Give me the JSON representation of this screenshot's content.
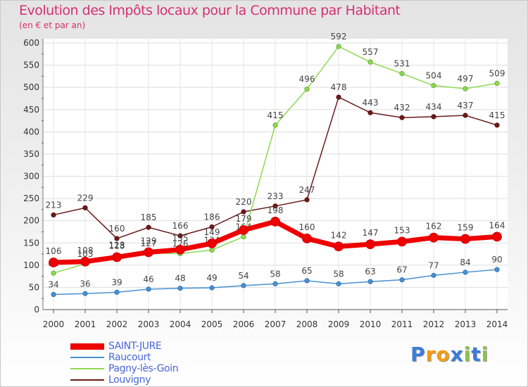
{
  "chart_data": {
    "type": "line",
    "title": "Evolution des Impôts locaux pour la Commune par Habitant",
    "subtitle": "(en € et par an)",
    "xlabel": "",
    "ylabel": "",
    "ylim": [
      0,
      600
    ],
    "yticks": [
      "0",
      "50",
      "100",
      "150",
      "200",
      "250",
      "300",
      "350",
      "400",
      "450",
      "500",
      "550",
      "600"
    ],
    "categories": [
      "2000",
      "2001",
      "2002",
      "2003",
      "2004",
      "2005",
      "2006",
      "2007",
      "2008",
      "2009",
      "2010",
      "2011",
      "2012",
      "2013",
      "2014"
    ],
    "grid": true,
    "legend_position": "bottom-left",
    "series": [
      {
        "name": "Louvigny",
        "color": "#6b1a1a",
        "values": [
          213,
          229,
          160,
          185,
          166,
          186,
          220,
          233,
          247,
          478,
          443,
          432,
          434,
          437,
          415
        ]
      },
      {
        "name": "Pagny-lès-Goin",
        "color": "#8ed850",
        "values": [
          82,
          103,
          123,
          127,
          126,
          134,
          164,
          415,
          496,
          592,
          557,
          531,
          504,
          497,
          509
        ]
      },
      {
        "name": "Raucourt",
        "color": "#4a90d0",
        "values": [
          34,
          36,
          39,
          46,
          48,
          49,
          54,
          58,
          65,
          58,
          63,
          67,
          77,
          84,
          90
        ]
      },
      {
        "name": "SAINT-JURE",
        "color": "#ee0000",
        "values": [
          106,
          108,
          118,
          129,
          135,
          149,
          179,
          198,
          160,
          142,
          147,
          153,
          162,
          159,
          164
        ]
      }
    ],
    "legend_order": [
      "SAINT-JURE",
      "Raucourt",
      "Pagny-lès-Goin",
      "Louvigny"
    ]
  },
  "logo": {
    "text": "Proxiti",
    "letters": [
      "P",
      "r",
      "o",
      "x",
      "i",
      "t",
      "i"
    ],
    "colors": [
      "#3b7dd8",
      "#f39c12",
      "#f39c12",
      "#3b7dd8",
      "#8bc34a",
      "#3b7dd8",
      "#8bc34a"
    ]
  }
}
